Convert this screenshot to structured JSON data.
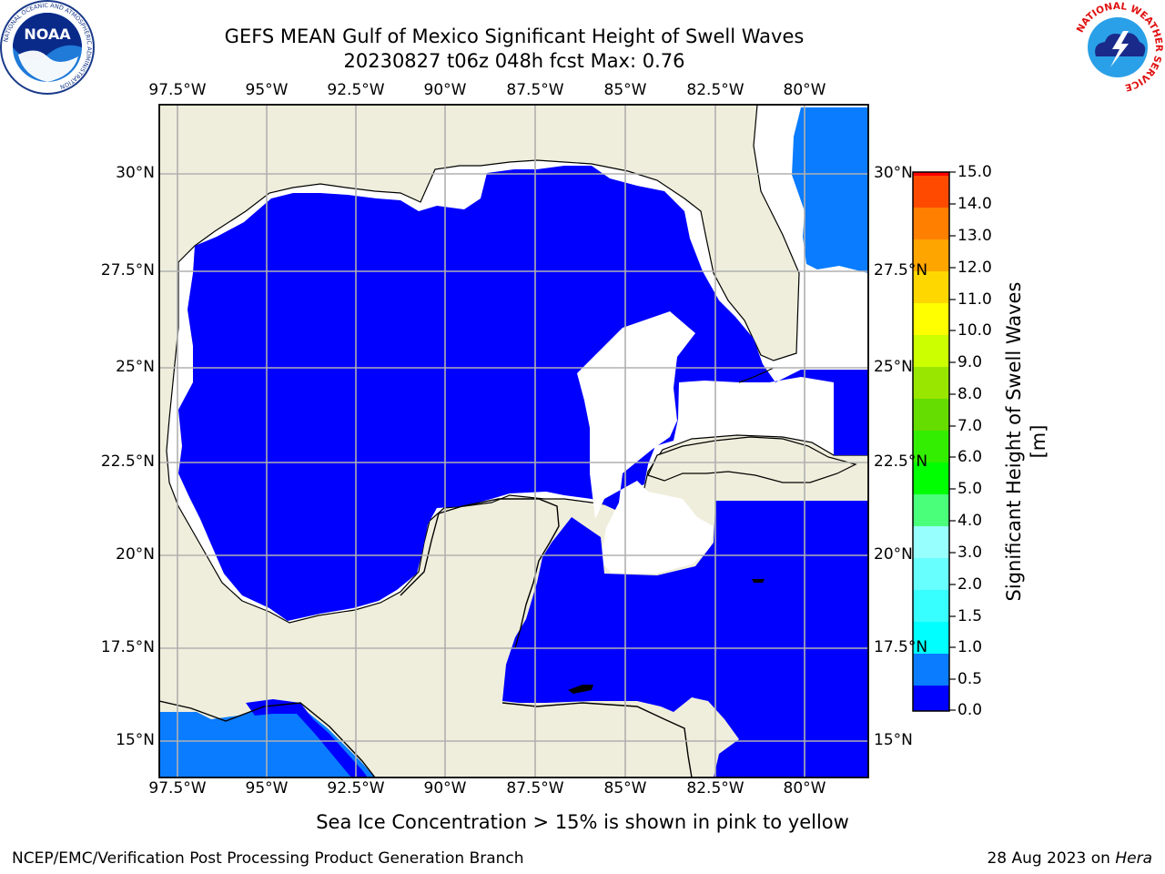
{
  "title": {
    "line1": "GEFS MEAN Gulf of Mexico Significant Height of Swell Waves",
    "line2": "20230827 t06z 048h fcst   Max: 0.76"
  },
  "map": {
    "lon_labels": [
      "97.5°W",
      "95°W",
      "92.5°W",
      "90°W",
      "87.5°W",
      "85°W",
      "82.5°W",
      "80°W"
    ],
    "lat_labels": [
      "30°N",
      "27.5°N",
      "25°N",
      "22.5°N",
      "20°N",
      "17.5°N",
      "15°N"
    ],
    "colors": {
      "land": "#efeedc",
      "ocean_low": "#0000ff",
      "ocean_mid": "#0a7cff",
      "no_data": "#ffffff",
      "grid": "#b0b0b0",
      "coast": "#000000"
    }
  },
  "colorbar": {
    "title": "Significant Height of Swell Waves [m]",
    "tick_labels": [
      "15.0",
      "14.0",
      "13.0",
      "12.0",
      "11.0",
      "10.0",
      "9.0",
      "8.0",
      "7.0",
      "6.0",
      "5.0",
      "4.0",
      "3.0",
      "2.0",
      "1.5",
      "1.0",
      "0.5",
      "0.0"
    ],
    "bin_colors_bottom_to_top": [
      "#0000ff",
      "#0a7cff",
      "#00ffff",
      "#38ffff",
      "#68ffff",
      "#98ffff",
      "#4aff79",
      "#00ff00",
      "#33ee00",
      "#66dd00",
      "#99e600",
      "#ccff00",
      "#ffff00",
      "#ffd700",
      "#ffa500",
      "#ff7f00",
      "#ff4a00",
      "#ff0000"
    ]
  },
  "footer": {
    "note": "Sea Ice Concentration > 15% is shown in pink to yellow",
    "left": "NCEP/EMC/Verification Post Processing Product Generation Branch",
    "right_prefix": "28 Aug 2023 on ",
    "right_host": "Hera"
  },
  "logos": {
    "noaa": {
      "text": "NOAA",
      "ring_text": "NATIONAL OCEANIC AND ATMOSPHERIC ADMINISTRATION",
      "bottom_text": "U.S. DEPARTMENT OF COMMERCE"
    },
    "nws": {
      "ring_text": "NATIONAL WEATHER SERVICE"
    }
  }
}
